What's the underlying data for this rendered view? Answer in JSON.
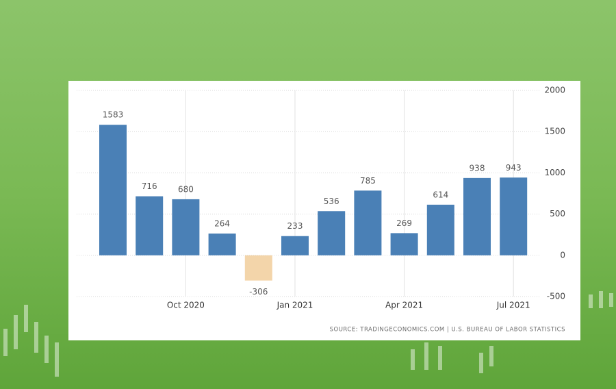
{
  "chart_data": {
    "type": "bar",
    "categories": [
      null,
      null,
      "Oct 2020",
      null,
      null,
      "Jan 2021",
      null,
      null,
      "Apr 2021",
      null,
      null,
      "Jul 2021"
    ],
    "values": [
      1583,
      716,
      680,
      264,
      -306,
      233,
      536,
      785,
      269,
      614,
      938,
      943
    ],
    "color": "#4a80b6",
    "negative_color": "#f3d5aa",
    "ylim": [
      -500,
      2000
    ],
    "yticks": [
      -500,
      0,
      500,
      1000,
      1500,
      2000
    ],
    "grid": true,
    "source": "SOURCE: TRADINGECONOMICS.COM | U.S. BUREAU OF LABOR STATISTICS"
  }
}
